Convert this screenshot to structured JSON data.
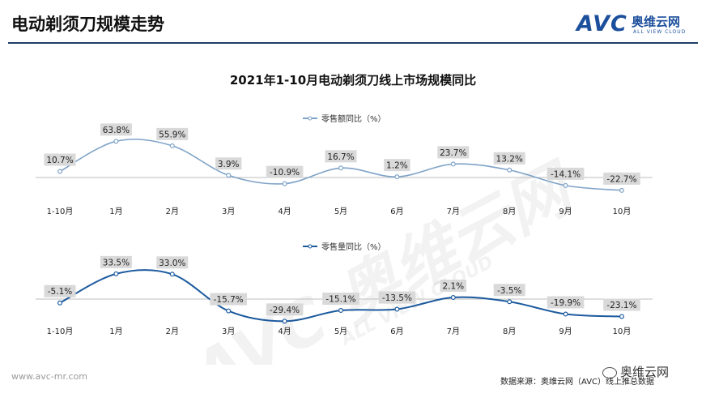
{
  "header": {
    "title": "电动剃须刀规模走势"
  },
  "logo": {
    "mark": "AVC",
    "cn": "奥维云网",
    "en": "ALL VIEW CLOUD"
  },
  "watermark": {
    "text": "AVC 奥维云网",
    "sub": "ALL VIEW CLOUD"
  },
  "footer": {
    "url": "www.avc-mr.com",
    "source": "数据来源：奥维云网（AVC）线上推总数据",
    "wechat": "奥维云网"
  },
  "chart_data": [
    {
      "type": "line",
      "title": "2021年1-10月电动剃须刀线上市场规模同比",
      "categories": [
        "1-10月",
        "1月",
        "2月",
        "3月",
        "4月",
        "5月",
        "6月",
        "7月",
        "8月",
        "9月",
        "10月"
      ],
      "series": [
        {
          "name": "零售额同比（%）",
          "values": [
            10.7,
            63.8,
            55.9,
            3.9,
            -10.9,
            16.7,
            1.2,
            23.7,
            13.2,
            -14.1,
            -22.7
          ],
          "labels": [
            "10.7%",
            "63.8%",
            "55.9%",
            "3.9%",
            "-10.9%",
            "16.7%",
            "1.2%",
            "23.7%",
            "13.2%",
            "-14.1%",
            "-22.7%"
          ],
          "color": "#7fa3c8"
        }
      ],
      "legend": "top-center",
      "grid": false
    },
    {
      "type": "line",
      "categories": [
        "1-10月",
        "1月",
        "2月",
        "3月",
        "4月",
        "5月",
        "6月",
        "7月",
        "8月",
        "9月",
        "10月"
      ],
      "series": [
        {
          "name": "零售量同比（%）",
          "values": [
            -5.1,
            33.5,
            33.0,
            -15.7,
            -29.4,
            -15.1,
            -13.5,
            2.1,
            -3.5,
            -19.9,
            -23.1
          ],
          "labels": [
            "-5.1%",
            "33.5%",
            "33.0%",
            "-15.7%",
            "-29.4%",
            "-15.1%",
            "-13.5%",
            "2.1%",
            "-3.5%",
            "-19.9%",
            "-23.1%"
          ],
          "color": "#1c5a9e"
        }
      ],
      "legend": "top-center",
      "grid": false
    }
  ]
}
